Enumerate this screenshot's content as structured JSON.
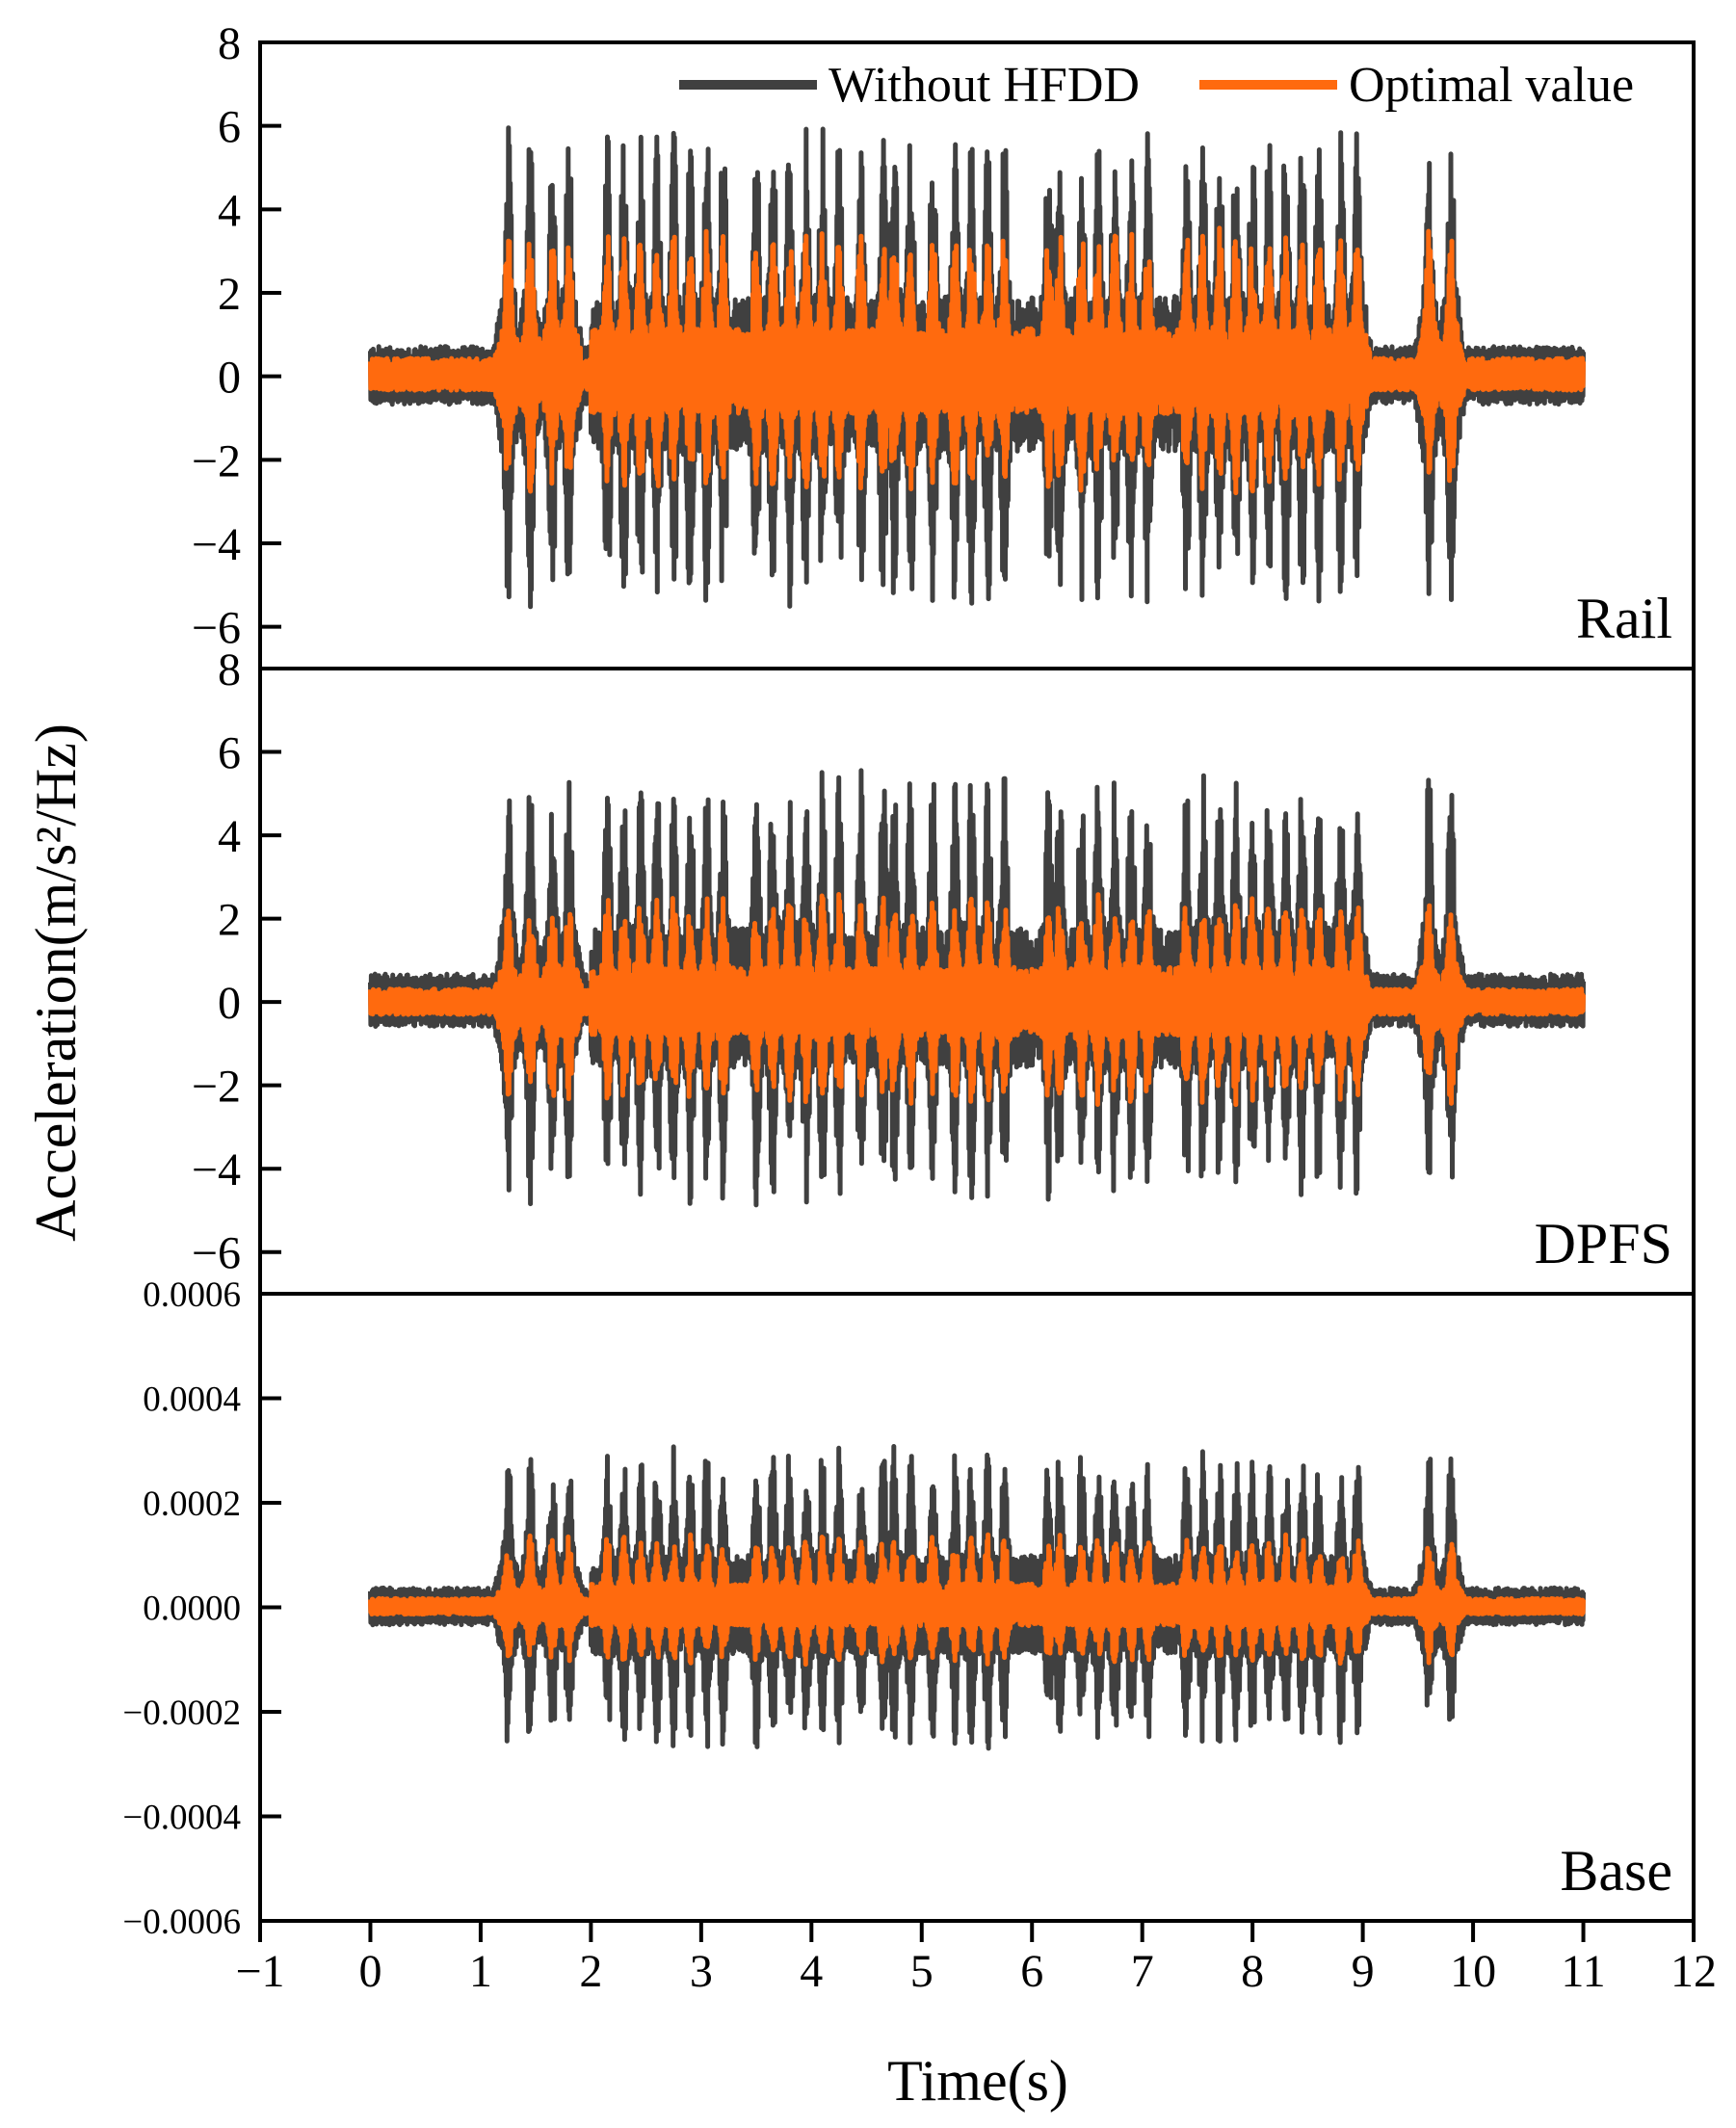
{
  "colors": {
    "without": "#404040",
    "optimal": "#ff6a0e",
    "frame": "#000000",
    "background": "#ffffff"
  },
  "chart_data": {
    "type": "line",
    "xlabel": "Time(s)",
    "ylabel": "Acceleration(m/s²/Hz)",
    "xlim": [
      -1,
      12
    ],
    "xticks": [
      -1,
      0,
      1,
      2,
      3,
      4,
      5,
      6,
      7,
      8,
      9,
      10,
      11,
      12
    ],
    "xtick_labels": [
      "−1",
      "0",
      "1",
      "2",
      "3",
      "4",
      "5",
      "6",
      "7",
      "8",
      "9",
      "10",
      "11",
      "12"
    ],
    "legend": {
      "placement": "top-right",
      "entries": [
        {
          "name": "Without HFDD",
          "color": "#404040"
        },
        {
          "name": "Optimal value",
          "color": "#ff6a0e"
        }
      ]
    },
    "time_span": [
      0,
      11
    ],
    "bursts": [
      1.25,
      1.45,
      1.65,
      1.8,
      2.15,
      2.3,
      2.45,
      2.6,
      2.75,
      2.9,
      3.05,
      3.2,
      3.5,
      3.65,
      3.8,
      3.95,
      4.1,
      4.25,
      4.45,
      4.65,
      4.75,
      4.9,
      5.1,
      5.3,
      5.45,
      5.6,
      5.75,
      6.15,
      6.25,
      6.45,
      6.6,
      6.75,
      6.9,
      7.05,
      7.4,
      7.55,
      7.7,
      7.85,
      8.0,
      8.15,
      8.3,
      8.45,
      8.6,
      8.8,
      8.95,
      9.6,
      9.8
    ],
    "panels": [
      {
        "label": "Rail",
        "ylim": [
          -7,
          8
        ],
        "yticks": [
          8,
          6,
          4,
          2,
          0,
          -2,
          -4,
          -6
        ],
        "ytick_labels": [
          "8",
          "6",
          "4",
          "2",
          "0",
          "−2",
          "−4",
          "−6"
        ],
        "series": [
          {
            "name": "Without HFDD",
            "peak_max": 6.0,
            "peak_min": -5.6,
            "baseline_amplitude": 0.35
          },
          {
            "name": "Optimal value",
            "peak_max": 3.6,
            "peak_min": -2.8,
            "baseline_amplitude": 0.15
          }
        ]
      },
      {
        "label": "DPFS",
        "ylim": [
          -7,
          8
        ],
        "yticks": [
          8,
          6,
          4,
          2,
          0,
          -2,
          -4,
          -6
        ],
        "ytick_labels": [
          "8",
          "6",
          "4",
          "2",
          "0",
          "−2",
          "−4",
          "−6"
        ],
        "series": [
          {
            "name": "Without HFDD",
            "peak_max": 5.6,
            "peak_min": -4.9,
            "baseline_amplitude": 0.3
          },
          {
            "name": "Optimal value",
            "peak_max": 2.6,
            "peak_min": -2.5,
            "baseline_amplitude": 0.12
          }
        ]
      },
      {
        "label": "Base",
        "ylim": [
          -0.0006,
          0.0006
        ],
        "yticks": [
          0.0006,
          0.0004,
          0.0002,
          0.0,
          -0.0002,
          -0.0004,
          -0.0006
        ],
        "ytick_labels": [
          "0.0006",
          "0.0004",
          "0.0002",
          "0.0000",
          "−0.0002",
          "−0.0004",
          "−0.0006"
        ],
        "series": [
          {
            "name": "Without HFDD",
            "peak_max": 0.00031,
            "peak_min": -0.00028,
            "baseline_amplitude": 2e-05
          },
          {
            "name": "Optimal value",
            "peak_max": 0.00014,
            "peak_min": -0.00011,
            "baseline_amplitude": 1e-05
          }
        ]
      }
    ]
  }
}
